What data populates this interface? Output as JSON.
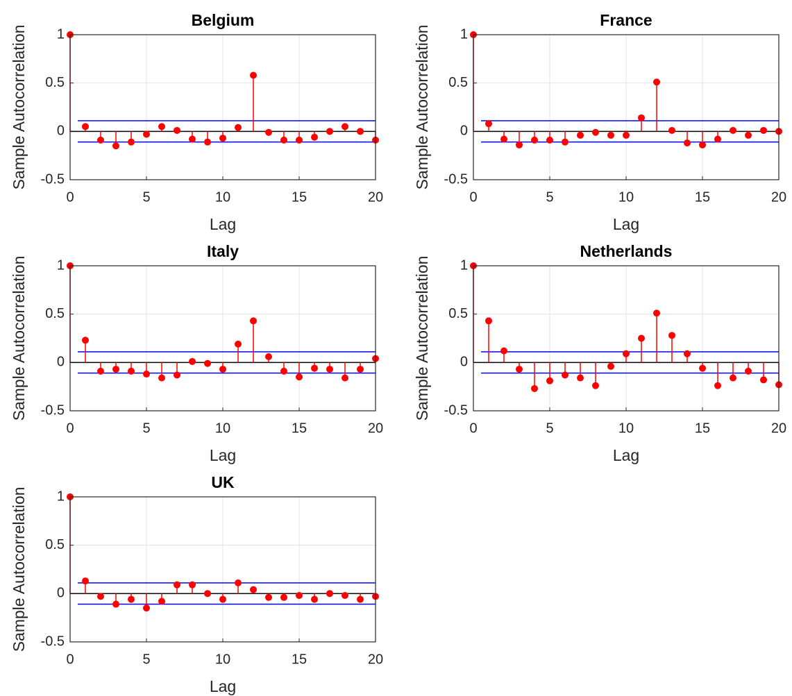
{
  "chart_data": [
    {
      "type": "stem",
      "title": "Belgium",
      "x_label": "Lag",
      "y_label": "Sample Autocorrelation",
      "x": [
        0,
        1,
        2,
        3,
        4,
        5,
        6,
        7,
        8,
        9,
        10,
        11,
        12,
        13,
        14,
        15,
        16,
        17,
        18,
        19,
        20
      ],
      "values": [
        1,
        0.05,
        -0.09,
        -0.15,
        -0.11,
        -0.03,
        0.05,
        0.01,
        -0.08,
        -0.11,
        -0.07,
        0.04,
        0.58,
        -0.01,
        -0.09,
        -0.09,
        -0.06,
        0,
        0.05,
        0,
        -0.09
      ],
      "color": "#ff0000",
      "bounds": [
        0.11,
        -0.11
      ],
      "bounds_color": "#0000ff",
      "xlim": [
        0,
        20
      ],
      "ylim": [
        -0.5,
        1
      ],
      "xticks": [
        0,
        5,
        10,
        15,
        20
      ],
      "yticks": [
        -0.5,
        0,
        0.5,
        1
      ],
      "grid": true
    },
    {
      "type": "stem",
      "title": "France",
      "x_label": "Lag",
      "y_label": "Sample Autocorrelation",
      "x": [
        0,
        1,
        2,
        3,
        4,
        5,
        6,
        7,
        8,
        9,
        10,
        11,
        12,
        13,
        14,
        15,
        16,
        17,
        18,
        19,
        20
      ],
      "values": [
        1,
        0.08,
        -0.08,
        -0.14,
        -0.09,
        -0.09,
        -0.11,
        -0.04,
        -0.01,
        -0.04,
        -0.04,
        0.14,
        0.51,
        0.01,
        -0.12,
        -0.14,
        -0.08,
        0.01,
        -0.04,
        0.01,
        0
      ],
      "color": "#ff0000",
      "bounds": [
        0.11,
        -0.11
      ],
      "bounds_color": "#0000ff",
      "xlim": [
        0,
        20
      ],
      "ylim": [
        -0.5,
        1
      ],
      "xticks": [
        0,
        5,
        10,
        15,
        20
      ],
      "yticks": [
        -0.5,
        0,
        0.5,
        1
      ],
      "grid": true
    },
    {
      "type": "stem",
      "title": "Italy",
      "x_label": "Lag",
      "y_label": "Sample Autocorrelation",
      "x": [
        0,
        1,
        2,
        3,
        4,
        5,
        6,
        7,
        8,
        9,
        10,
        11,
        12,
        13,
        14,
        15,
        16,
        17,
        18,
        19,
        20
      ],
      "values": [
        1,
        0.23,
        -0.09,
        -0.07,
        -0.09,
        -0.12,
        -0.16,
        -0.13,
        0.01,
        -0.01,
        -0.07,
        0.19,
        0.43,
        0.06,
        -0.09,
        -0.15,
        -0.06,
        -0.07,
        -0.16,
        -0.07,
        0.04
      ],
      "color": "#ff0000",
      "bounds": [
        0.11,
        -0.11
      ],
      "bounds_color": "#0000ff",
      "xlim": [
        0,
        20
      ],
      "ylim": [
        -0.5,
        1
      ],
      "xticks": [
        0,
        5,
        10,
        15,
        20
      ],
      "yticks": [
        -0.5,
        0,
        0.5,
        1
      ],
      "grid": true
    },
    {
      "type": "stem",
      "title": "Netherlands",
      "x_label": "Lag",
      "y_label": "Sample Autocorrelation",
      "x": [
        0,
        1,
        2,
        3,
        4,
        5,
        6,
        7,
        8,
        9,
        10,
        11,
        12,
        13,
        14,
        15,
        16,
        17,
        18,
        19,
        20
      ],
      "values": [
        1,
        0.43,
        0.12,
        -0.07,
        -0.27,
        -0.19,
        -0.13,
        -0.16,
        -0.24,
        -0.04,
        0.09,
        0.25,
        0.51,
        0.28,
        0.09,
        -0.06,
        -0.24,
        -0.16,
        -0.09,
        -0.18,
        -0.23
      ],
      "color": "#ff0000",
      "bounds": [
        0.11,
        -0.11
      ],
      "bounds_color": "#0000ff",
      "xlim": [
        0,
        20
      ],
      "ylim": [
        -0.5,
        1
      ],
      "xticks": [
        0,
        5,
        10,
        15,
        20
      ],
      "yticks": [
        -0.5,
        0,
        0.5,
        1
      ],
      "grid": true
    },
    {
      "type": "stem",
      "title": "UK",
      "x_label": "Lag",
      "y_label": "Sample Autocorrelation",
      "x": [
        0,
        1,
        2,
        3,
        4,
        5,
        6,
        7,
        8,
        9,
        10,
        11,
        12,
        13,
        14,
        15,
        16,
        17,
        18,
        19,
        20
      ],
      "values": [
        1,
        0.13,
        -0.03,
        -0.11,
        -0.06,
        -0.15,
        -0.08,
        0.09,
        0.09,
        0,
        -0.06,
        0.11,
        0.04,
        -0.04,
        -0.04,
        -0.02,
        -0.06,
        0,
        -0.02,
        -0.06,
        -0.03
      ],
      "color": "#ff0000",
      "bounds": [
        0.11,
        -0.11
      ],
      "bounds_color": "#0000ff",
      "xlim": [
        0,
        20
      ],
      "ylim": [
        -0.5,
        1
      ],
      "xticks": [
        0,
        5,
        10,
        15,
        20
      ],
      "yticks": [
        -0.5,
        0,
        0.5,
        1
      ],
      "grid": true
    }
  ]
}
